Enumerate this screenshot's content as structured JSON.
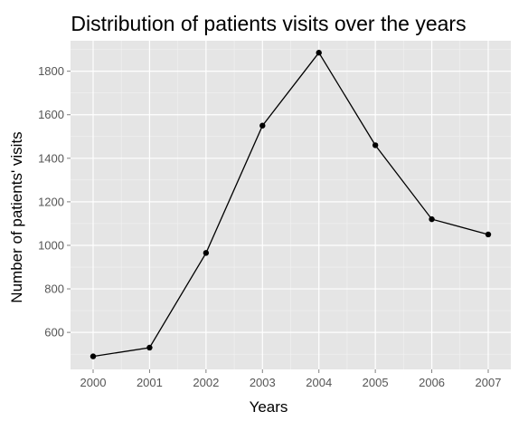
{
  "chart_data": {
    "type": "line",
    "title": "Distribution of patients visits over the years",
    "xlabel": "Years",
    "ylabel": "Number of patients' visits",
    "categories": [
      "2000",
      "2001",
      "2002",
      "2003",
      "2004",
      "2005",
      "2006",
      "2007"
    ],
    "series": [
      {
        "values": [
          490,
          530,
          965,
          1550,
          1885,
          1460,
          1120,
          1050
        ]
      }
    ],
    "yticks": [
      600,
      800,
      1000,
      1200,
      1400,
      1600,
      1800
    ],
    "ylim": [
      430,
      1940
    ],
    "grid": true,
    "legend": "none",
    "colors": {
      "panel": "#e5e5e5",
      "grid": "#ffffff",
      "line": "#000000",
      "tick_text": "#555555"
    }
  }
}
